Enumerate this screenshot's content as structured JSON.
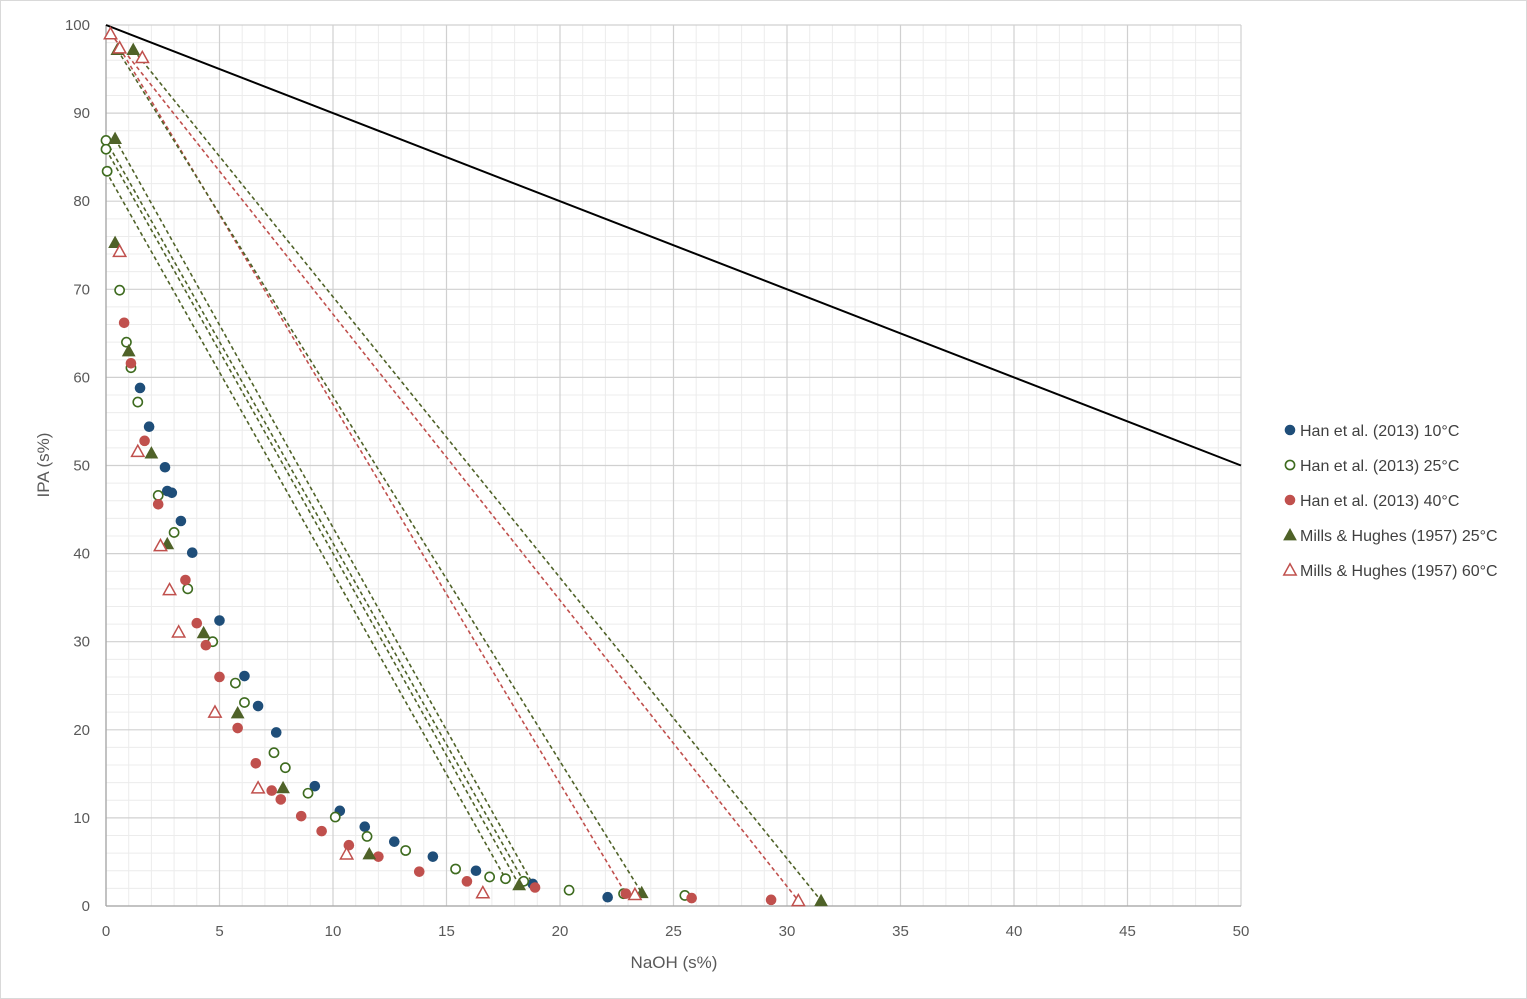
{
  "chart_data": {
    "type": "scatter",
    "xlabel": "NaOH (s%)",
    "ylabel": "IPA (s%)",
    "xlim": [
      0,
      50
    ],
    "ylim": [
      0,
      100
    ],
    "x_ticks": [
      0,
      5,
      10,
      15,
      20,
      25,
      30,
      35,
      40,
      45,
      50
    ],
    "y_ticks": [
      0,
      10,
      20,
      30,
      40,
      50,
      60,
      70,
      80,
      90,
      100
    ],
    "grid": true,
    "minor_grid": true,
    "legend_position": "right",
    "series": [
      {
        "name": "Han et al. (2013) 10°C",
        "marker": "circle-filled",
        "color": "#1f4e79",
        "points": [
          [
            1.5,
            58.8
          ],
          [
            1.9,
            54.4
          ],
          [
            2.6,
            49.8
          ],
          [
            2.7,
            47.1
          ],
          [
            2.9,
            46.9
          ],
          [
            3.3,
            43.7
          ],
          [
            3.8,
            40.1
          ],
          [
            5.0,
            32.4
          ],
          [
            6.1,
            26.1
          ],
          [
            6.7,
            22.7
          ],
          [
            7.5,
            19.7
          ],
          [
            9.2,
            13.6
          ],
          [
            10.3,
            10.8
          ],
          [
            11.4,
            9.0
          ],
          [
            12.7,
            7.3
          ],
          [
            14.4,
            5.6
          ],
          [
            16.3,
            4.0
          ],
          [
            18.8,
            2.5
          ],
          [
            22.1,
            1.0
          ]
        ]
      },
      {
        "name": "Han et al. (2013) 25°C",
        "marker": "circle-open",
        "color": "#3e6b1f",
        "points": [
          [
            0.0,
            86.9
          ],
          [
            0.0,
            85.9
          ],
          [
            0.05,
            83.4
          ],
          [
            0.6,
            69.9
          ],
          [
            0.9,
            64.0
          ],
          [
            1.1,
            61.1
          ],
          [
            1.4,
            57.2
          ],
          [
            2.3,
            46.6
          ],
          [
            3.0,
            42.4
          ],
          [
            3.6,
            36.0
          ],
          [
            4.7,
            30.0
          ],
          [
            5.7,
            25.3
          ],
          [
            6.1,
            23.1
          ],
          [
            7.4,
            17.4
          ],
          [
            7.9,
            15.7
          ],
          [
            8.9,
            12.8
          ],
          [
            10.1,
            10.1
          ],
          [
            11.5,
            7.9
          ],
          [
            13.2,
            6.3
          ],
          [
            15.4,
            4.2
          ],
          [
            16.9,
            3.3
          ],
          [
            17.6,
            3.1
          ],
          [
            18.4,
            2.8
          ],
          [
            20.4,
            1.8
          ],
          [
            22.8,
            1.4
          ],
          [
            25.5,
            1.2
          ]
        ]
      },
      {
        "name": "Han et al. (2013) 40°C",
        "marker": "circle-filled",
        "color": "#c0504d",
        "points": [
          [
            0.8,
            66.2
          ],
          [
            1.1,
            61.6
          ],
          [
            1.7,
            52.8
          ],
          [
            2.3,
            45.6
          ],
          [
            3.5,
            37.0
          ],
          [
            4.0,
            32.1
          ],
          [
            4.4,
            29.6
          ],
          [
            5.0,
            26.0
          ],
          [
            5.8,
            20.2
          ],
          [
            6.6,
            16.2
          ],
          [
            7.3,
            13.1
          ],
          [
            7.7,
            12.1
          ],
          [
            8.6,
            10.2
          ],
          [
            9.5,
            8.5
          ],
          [
            10.7,
            6.9
          ],
          [
            12.0,
            5.6
          ],
          [
            13.8,
            3.9
          ],
          [
            15.9,
            2.8
          ],
          [
            18.9,
            2.1
          ],
          [
            22.9,
            1.4
          ],
          [
            25.8,
            0.9
          ],
          [
            29.3,
            0.7
          ]
        ]
      },
      {
        "name": "Mills & Hughes (1957) 25°C",
        "marker": "triangle-filled",
        "color": "#4f6228",
        "points": [
          [
            0.5,
            97.2
          ],
          [
            1.2,
            97.2
          ],
          [
            0.4,
            87.1
          ],
          [
            0.4,
            75.3
          ],
          [
            1.0,
            63.0
          ],
          [
            2.0,
            51.4
          ],
          [
            2.7,
            41.1
          ],
          [
            4.3,
            31.0
          ],
          [
            5.8,
            21.9
          ],
          [
            7.8,
            13.4
          ],
          [
            11.6,
            5.9
          ],
          [
            18.2,
            2.4
          ],
          [
            23.6,
            1.5
          ],
          [
            31.5,
            0.6
          ]
        ]
      },
      {
        "name": "Mills & Hughes (1957) 60°C",
        "marker": "triangle-open",
        "color": "#c0504d",
        "points": [
          [
            0.2,
            99.0
          ],
          [
            0.6,
            97.4
          ],
          [
            1.6,
            96.3
          ],
          [
            0.6,
            74.3
          ],
          [
            1.4,
            51.6
          ],
          [
            2.4,
            40.9
          ],
          [
            2.8,
            35.9
          ],
          [
            3.2,
            31.1
          ],
          [
            4.8,
            22.0
          ],
          [
            6.7,
            13.4
          ],
          [
            10.6,
            5.9
          ],
          [
            16.6,
            1.5
          ],
          [
            23.3,
            1.3
          ],
          [
            30.5,
            0.6
          ]
        ]
      }
    ],
    "lines": [
      {
        "style": "solid",
        "color": "#000000",
        "points": [
          [
            0,
            100
          ],
          [
            50,
            50
          ]
        ]
      },
      {
        "style": "dashed",
        "color": "#4f6228",
        "points": [
          [
            0.0,
            83.4
          ],
          [
            17.6,
            3.1
          ]
        ]
      },
      {
        "style": "dashed",
        "color": "#4f6228",
        "points": [
          [
            0.0,
            85.9
          ],
          [
            18.2,
            2.4
          ]
        ]
      },
      {
        "style": "dashed",
        "color": "#4f6228",
        "points": [
          [
            0.0,
            86.9
          ],
          [
            18.4,
            2.8
          ]
        ]
      },
      {
        "style": "dashed",
        "color": "#4f6228",
        "points": [
          [
            0.4,
            87.1
          ],
          [
            18.8,
            2.5
          ]
        ]
      },
      {
        "style": "dashed",
        "color": "#c0504d",
        "points": [
          [
            0.6,
            97.4
          ],
          [
            22.9,
            1.4
          ]
        ]
      },
      {
        "style": "dashed",
        "color": "#4f6228",
        "points": [
          [
            0.5,
            97.2
          ],
          [
            23.6,
            1.5
          ]
        ]
      },
      {
        "style": "dashed",
        "color": "#c0504d",
        "points": [
          [
            0.2,
            99.0
          ],
          [
            30.5,
            0.6
          ]
        ]
      },
      {
        "style": "dashed",
        "color": "#4f6228",
        "points": [
          [
            1.2,
            97.2
          ],
          [
            31.5,
            0.6
          ]
        ]
      }
    ]
  }
}
